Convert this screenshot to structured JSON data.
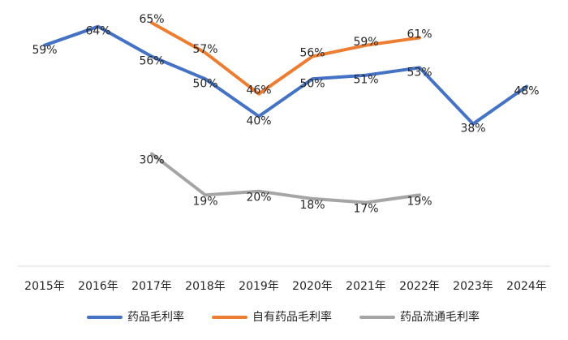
{
  "chart_data": {
    "type": "line",
    "categories": [
      "2015年",
      "2016年",
      "2017年",
      "2018年",
      "2019年",
      "2020年",
      "2021年",
      "2022年",
      "2023年",
      "2024年"
    ],
    "ylim": [
      0,
      70
    ],
    "grid": false,
    "legend_position": "bottom",
    "series": [
      {
        "name": "药品毛利率",
        "color": "#4472C4",
        "values": [
          59,
          64,
          56,
          50,
          40,
          50,
          51,
          53,
          38,
          48
        ],
        "labels": [
          "59%",
          "64%",
          "56%",
          "50%",
          "40%",
          "50%",
          "51%",
          "53%",
          "38%",
          "48%"
        ]
      },
      {
        "name": "自有药品毛利率",
        "color": "#ED7D31",
        "values": [
          null,
          null,
          65,
          57,
          46,
          56,
          59,
          61,
          null,
          null
        ],
        "labels": [
          null,
          null,
          "65%",
          "57%",
          "46%",
          "56%",
          "59%",
          "61%",
          null,
          null
        ]
      },
      {
        "name": "药品流通毛利率",
        "color": "#A5A5A5",
        "values": [
          null,
          null,
          30,
          19,
          20,
          18,
          17,
          19,
          null,
          null
        ],
        "labels": [
          null,
          null,
          "30%",
          "19%",
          "20%",
          "18%",
          "17%",
          "19%",
          null,
          null
        ]
      }
    ]
  }
}
